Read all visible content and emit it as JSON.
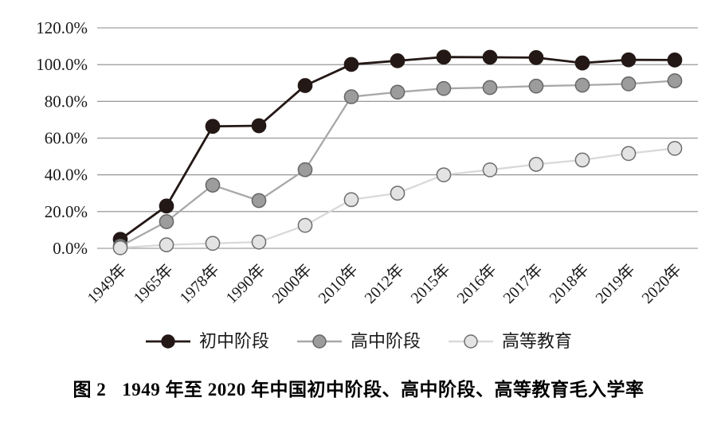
{
  "figure": {
    "caption_prefix": "图 2",
    "caption_text": "1949 年至 2020 年中国初中阶段、高中阶段、高等教育毛入学率"
  },
  "chart_data": {
    "type": "line",
    "title": "1949年至2020年中国初中阶段、高中阶段、高等教育毛入学率",
    "xlabel": "",
    "ylabel": "",
    "categories": [
      "1949年",
      "1965年",
      "1978年",
      "1990年",
      "2000年",
      "2010年",
      "2012年",
      "2015年",
      "2016年",
      "2017年",
      "2018年",
      "2019年",
      "2020年"
    ],
    "series": [
      {
        "name": "初中阶段",
        "values": [
          4.9,
          23.0,
          66.4,
          66.7,
          88.6,
          100.1,
          102.1,
          104.1,
          104.0,
          103.8,
          100.9,
          102.6,
          102.5
        ],
        "line_color": "#231815",
        "dot_fill": "#231815",
        "dot_stroke": "#231815"
      },
      {
        "name": "高中阶段",
        "values": [
          1.1,
          14.5,
          34.4,
          26.0,
          42.8,
          82.5,
          85.0,
          87.0,
          87.5,
          88.3,
          88.8,
          89.5,
          91.2
        ],
        "line_color": "#a8a8a8",
        "dot_fill": "#9c9c9c",
        "dot_stroke": "#666666"
      },
      {
        "name": "高等教育",
        "values": [
          0.3,
          1.9,
          2.7,
          3.4,
          12.5,
          26.5,
          30.0,
          40.0,
          42.7,
          45.7,
          48.1,
          51.6,
          54.4
        ],
        "line_color": "#d9d9d9",
        "dot_fill": "#e3e3e3",
        "dot_stroke": "#6e6e6e"
      }
    ],
    "y_ticks": [
      "120.0%",
      "100.0%",
      "80.0%",
      "60.0%",
      "40.0%",
      "20.0%",
      "0.0%"
    ],
    "ylim": [
      0,
      120
    ],
    "ytick_step": 20,
    "grid": true,
    "gridline_color": "#8a8a8a",
    "legend_position": "bottom"
  }
}
